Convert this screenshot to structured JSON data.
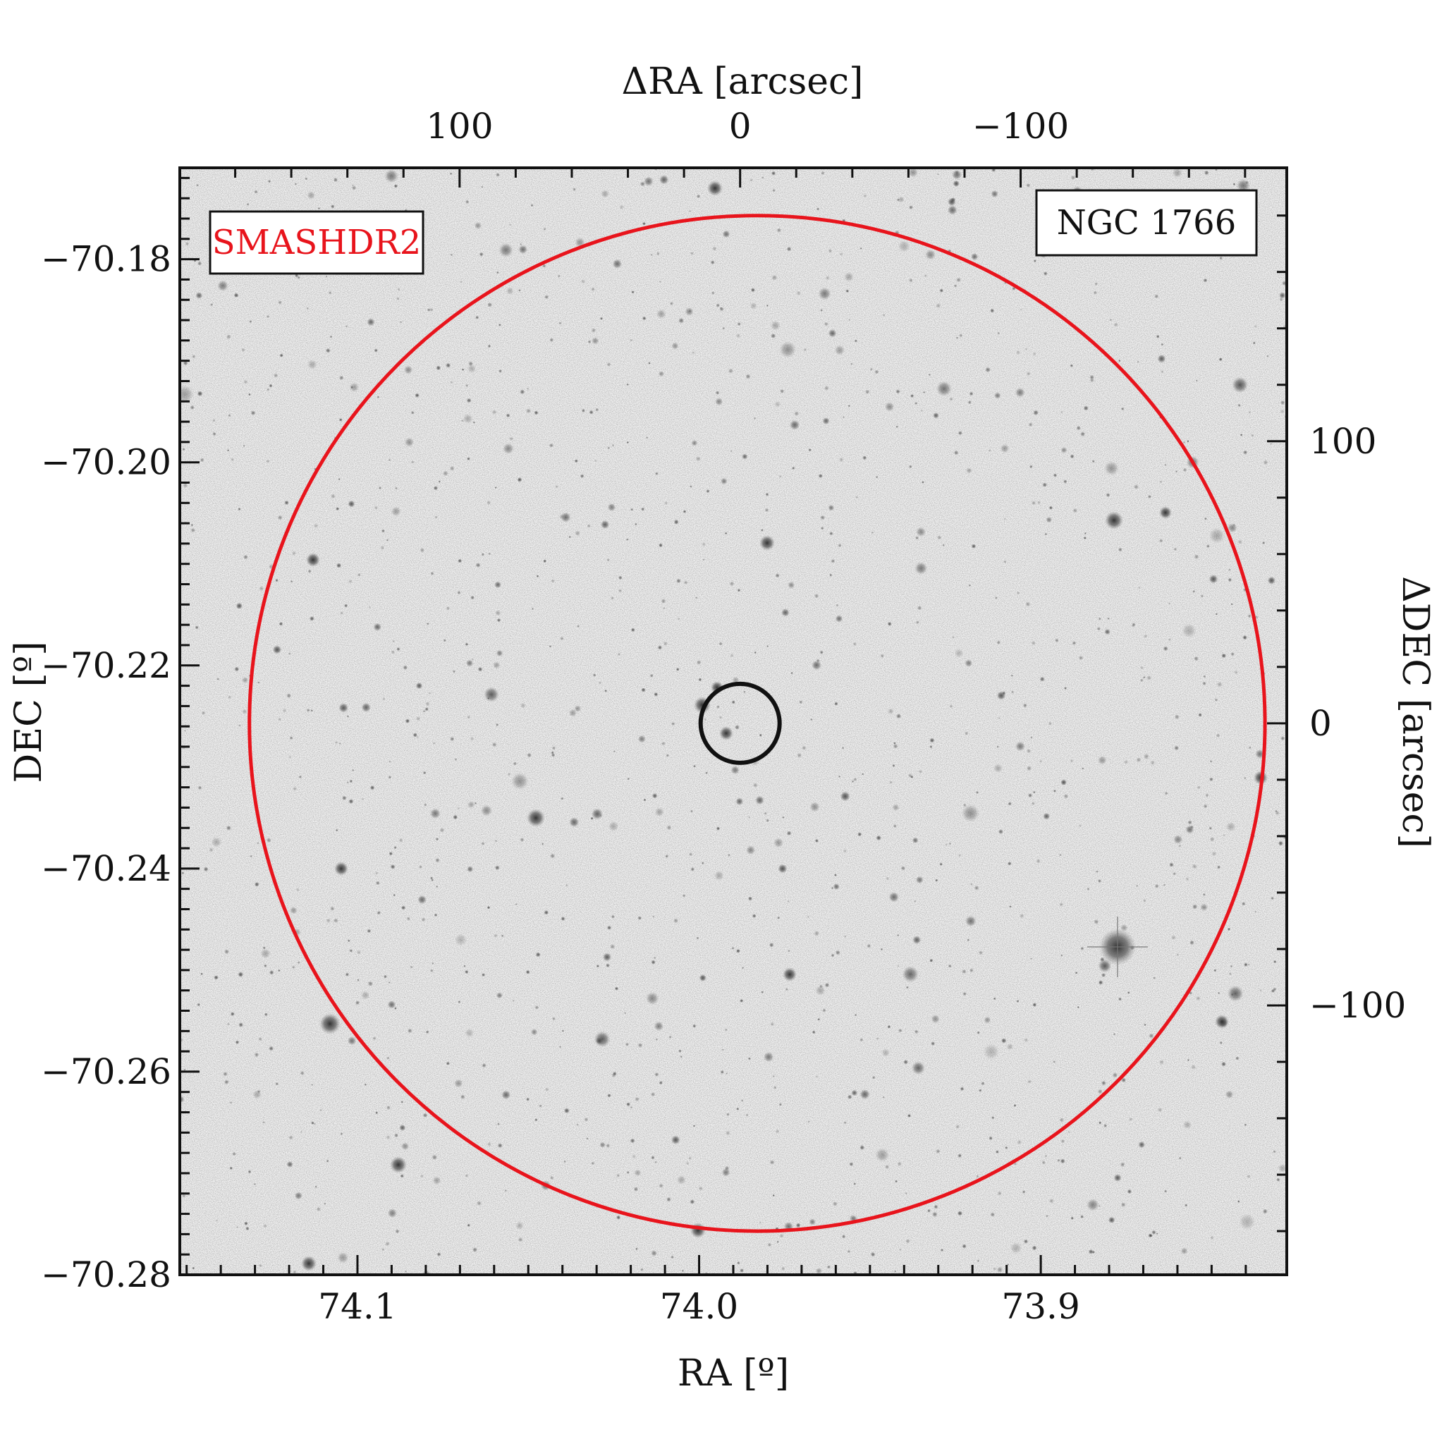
{
  "chart_data": {
    "type": "scatter",
    "title": "",
    "survey_label": "SMASHDR2",
    "object_label": "NGC 1766",
    "xlabel": "RA [º]",
    "ylabel": "DEC [º]",
    "xlabel_top": "ΔRA [arcsec]",
    "ylabel_right": "ΔDEC [arcsec]",
    "xlim": [
      74.152,
      73.828
    ],
    "ylim": [
      -70.28,
      -70.171
    ],
    "xticks": [
      {
        "value": 74.1,
        "label": "74.1"
      },
      {
        "value": 74.0,
        "label": "74.0"
      },
      {
        "value": 73.9,
        "label": "73.9"
      }
    ],
    "yticks": [
      {
        "value": -70.18,
        "label": "−70.18"
      },
      {
        "value": -70.2,
        "label": "−70.20"
      },
      {
        "value": -70.22,
        "label": "−70.22"
      },
      {
        "value": -70.24,
        "label": "−70.24"
      },
      {
        "value": -70.26,
        "label": "−70.26"
      },
      {
        "value": -70.28,
        "label": "−70.28"
      }
    ],
    "top_axis": {
      "center_ra": 73.988,
      "ticks": [
        {
          "value": 100,
          "label": "100"
        },
        {
          "value": 0,
          "label": "0"
        },
        {
          "value": -100,
          "label": "−100"
        }
      ]
    },
    "right_axis": {
      "center_dec": -70.2257,
      "ticks": [
        {
          "value": 100,
          "label": "100"
        },
        {
          "value": 0,
          "label": "0"
        },
        {
          "value": -100,
          "label": "−100"
        }
      ]
    },
    "circles": [
      {
        "name": "field",
        "center_ra": 73.983,
        "center_dec": -70.2257,
        "radius_arcsec": 180,
        "color": "#e8141c"
      },
      {
        "name": "cluster",
        "center_ra": 73.988,
        "center_dec": -70.2257,
        "radius_arcsec": 14,
        "color": "#111111"
      }
    ],
    "grid": false,
    "colors": {
      "survey_label": "#e8141c",
      "frame": "#111111",
      "sky": "#f1f1f1"
    }
  }
}
